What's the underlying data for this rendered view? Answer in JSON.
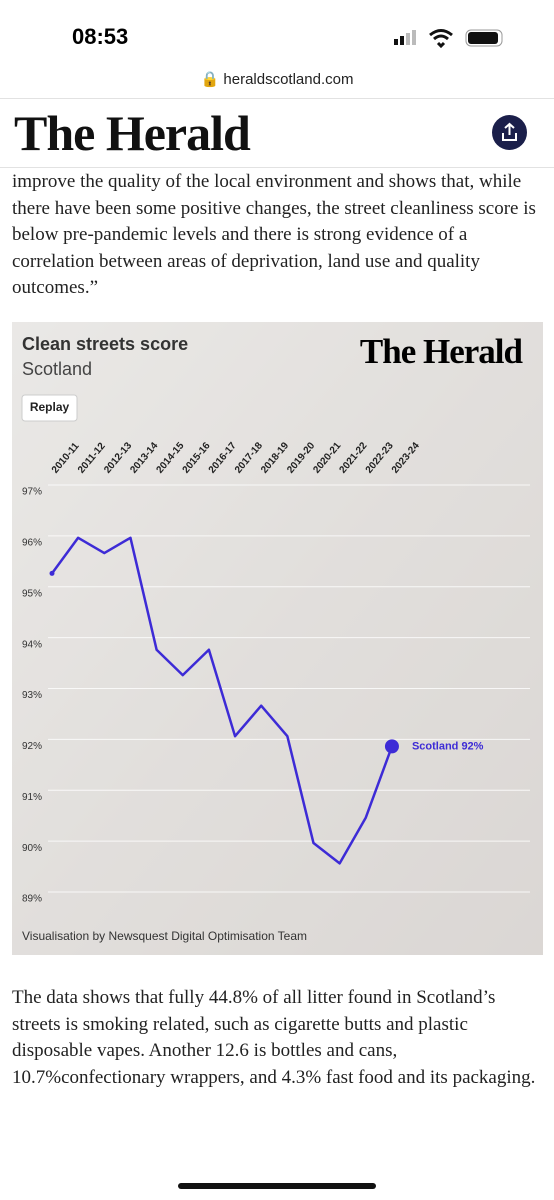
{
  "status_bar": {
    "time": "08:53"
  },
  "browser": {
    "url": "heraldscotland.com"
  },
  "header": {
    "logo": "The Herald"
  },
  "article": {
    "paragraphs": [
      "improve the quality of the local environment and shows that, while there have been some positive changes, the street cleanliness score is below pre-pandemic levels and there is strong evidence of a correlation between areas of deprivation, land use and quality outcomes.”",
      "The data shows that fully 44.8% of all litter found in Scotland’s streets is smoking related, such as cigarette butts and plastic disposable vapes. Another 12.6 is bottles and cans, 10.7%confectionary wrappers, and 4.3% fast food and its packaging."
    ]
  },
  "chart_data": {
    "type": "line",
    "title": "Clean streets score",
    "subtitle": "Scotland",
    "button": "Replay",
    "logo": "The Herald",
    "credit": "Visualisation by Newsquest Digital Optimisation Team",
    "categories": [
      "2010-11",
      "2011-12",
      "2012-13",
      "2013-14",
      "2014-15",
      "2015-16",
      "2016-17",
      "2017-18",
      "2018-19",
      "2019-20",
      "2020-21",
      "2021-22",
      "2022-23",
      "2023-24"
    ],
    "values": [
      95.4,
      96.1,
      95.8,
      96.1,
      93.9,
      93.4,
      93.9,
      92.2,
      92.8,
      92.2,
      90.1,
      89.7,
      90.6,
      92
    ],
    "color": "#3d2bd6",
    "annotation": "Scotland 92%",
    "ylim": [
      89,
      97
    ],
    "yticks": [
      {
        "value": 89,
        "label": "89%"
      },
      {
        "value": 90,
        "label": "90%"
      },
      {
        "value": 91,
        "label": "91%"
      },
      {
        "value": 92,
        "label": "92%"
      },
      {
        "value": 93,
        "label": "93%"
      },
      {
        "value": 94,
        "label": "94%"
      },
      {
        "value": 95,
        "label": "95%"
      },
      {
        "value": 96,
        "label": "96%"
      },
      {
        "value": 97,
        "label": "97%"
      }
    ],
    "grid": true
  }
}
